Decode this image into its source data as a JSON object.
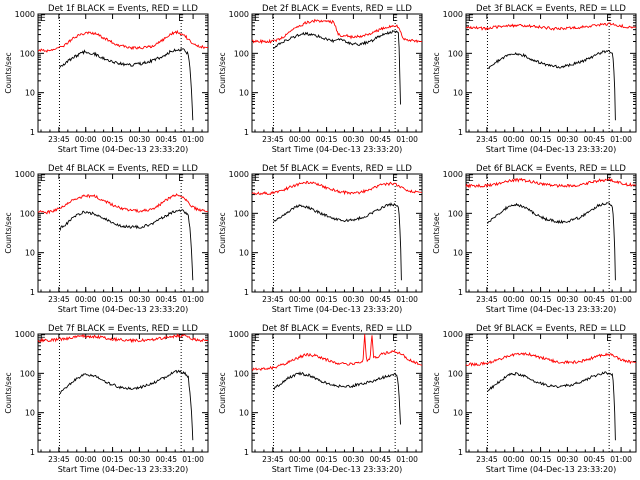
{
  "figure": {
    "xlabel": "Start Time (04-Dec-13 23:33:20)",
    "ylabel": "Counts/sec",
    "x_ticks": [
      "23:45",
      "00:00",
      "00:15",
      "00:30",
      "00:45",
      "01:00"
    ],
    "y_ticks": [
      "1",
      "10",
      "100",
      "1000"
    ],
    "marker": "E",
    "colors": {
      "events": "#000000",
      "lld": "#ff0000",
      "marker_lines": "#000000"
    }
  },
  "chart_data": [
    {
      "type": "line",
      "title": "Det 1f BLACK = Events, RED = LLD",
      "x_unit": "minutes after 23:33:20",
      "xlim": [
        0,
        95
      ],
      "ylim": [
        1,
        1000
      ],
      "y_scale": "log",
      "markers_x": [
        12,
        80
      ],
      "series": [
        {
          "name": "Events",
          "color": "#000000",
          "x": [
            12,
            16,
            20,
            26,
            32,
            38,
            45,
            52,
            58,
            64,
            70,
            74,
            77,
            80,
            82,
            84,
            85,
            86,
            86.5
          ],
          "values": [
            45,
            60,
            80,
            110,
            95,
            70,
            55,
            50,
            55,
            65,
            85,
            110,
            120,
            125,
            120,
            95,
            40,
            8,
            2
          ]
        },
        {
          "name": "LLD",
          "color": "#ff0000",
          "x": [
            0,
            5,
            10,
            15,
            20,
            26,
            32,
            38,
            45,
            52,
            58,
            64,
            70,
            74,
            78,
            82,
            86,
            90,
            95
          ],
          "values": [
            120,
            115,
            125,
            160,
            250,
            330,
            320,
            230,
            160,
            140,
            135,
            150,
            220,
            310,
            350,
            280,
            180,
            150,
            140
          ]
        }
      ]
    },
    {
      "type": "line",
      "title": "Det 2f BLACK = Events, RED = LLD",
      "x_unit": "minutes after 23:33:20",
      "xlim": [
        0,
        95
      ],
      "ylim": [
        1,
        1000
      ],
      "y_scale": "log",
      "markers_x": [
        12,
        80
      ],
      "series": [
        {
          "name": "Events",
          "color": "#000000",
          "x": [
            12,
            18,
            24,
            30,
            36,
            42,
            46,
            48,
            52,
            56,
            60,
            66,
            72,
            76,
            80,
            82,
            83
          ],
          "values": [
            140,
            200,
            270,
            320,
            280,
            230,
            200,
            230,
            200,
            170,
            170,
            200,
            280,
            330,
            380,
            330,
            5
          ]
        },
        {
          "name": "LLD",
          "color": "#ff0000",
          "x": [
            0,
            6,
            12,
            18,
            24,
            30,
            36,
            42,
            46,
            48,
            52,
            56,
            60,
            66,
            72,
            76,
            80,
            82,
            84,
            88,
            95
          ],
          "values": [
            200,
            200,
            200,
            270,
            420,
            600,
            680,
            640,
            620,
            300,
            280,
            260,
            270,
            300,
            420,
            480,
            500,
            480,
            250,
            210,
            200
          ]
        }
      ]
    },
    {
      "type": "line",
      "title": "Det 3f BLACK = Events, RED = LLD",
      "x_unit": "minutes after 23:33:20",
      "xlim": [
        0,
        95
      ],
      "ylim": [
        1,
        1000
      ],
      "y_scale": "log",
      "markers_x": [
        12,
        80
      ],
      "series": [
        {
          "name": "Events",
          "color": "#000000",
          "x": [
            12,
            16,
            20,
            26,
            32,
            38,
            45,
            52,
            58,
            64,
            70,
            74,
            78,
            80,
            82,
            83,
            83.5
          ],
          "values": [
            40,
            55,
            75,
            100,
            90,
            65,
            50,
            45,
            50,
            60,
            80,
            100,
            110,
            110,
            100,
            20,
            2
          ]
        },
        {
          "name": "LLD",
          "color": "#ff0000",
          "x": [
            0,
            10,
            20,
            30,
            40,
            50,
            60,
            70,
            80,
            90,
            95
          ],
          "values": [
            450,
            430,
            480,
            520,
            470,
            420,
            440,
            500,
            560,
            470,
            460
          ]
        }
      ]
    },
    {
      "type": "line",
      "title": "Det 4f BLACK = Events, RED = LLD",
      "x_unit": "minutes after 23:33:20",
      "xlim": [
        0,
        95
      ],
      "ylim": [
        1,
        1000
      ],
      "y_scale": "log",
      "markers_x": [
        12,
        80
      ],
      "series": [
        {
          "name": "Events",
          "color": "#000000",
          "x": [
            12,
            16,
            20,
            26,
            32,
            38,
            45,
            52,
            58,
            64,
            70,
            74,
            77,
            80,
            82,
            84,
            85,
            86,
            86.5
          ],
          "values": [
            40,
            55,
            80,
            110,
            95,
            70,
            50,
            45,
            45,
            55,
            80,
            100,
            115,
            120,
            110,
            90,
            40,
            8,
            2
          ]
        },
        {
          "name": "LLD",
          "color": "#ff0000",
          "x": [
            0,
            5,
            10,
            15,
            20,
            26,
            32,
            38,
            45,
            52,
            58,
            64,
            70,
            74,
            78,
            82,
            86,
            90,
            95
          ],
          "values": [
            110,
            105,
            120,
            160,
            220,
            280,
            270,
            200,
            140,
            120,
            115,
            125,
            190,
            260,
            300,
            230,
            150,
            120,
            110
          ]
        }
      ]
    },
    {
      "type": "line",
      "title": "Det 5f BLACK = Events, RED = LLD",
      "x_unit": "minutes after 23:33:20",
      "xlim": [
        0,
        95
      ],
      "ylim": [
        1,
        1000
      ],
      "y_scale": "log",
      "markers_x": [
        12,
        80
      ],
      "series": [
        {
          "name": "Events",
          "color": "#000000",
          "x": [
            12,
            16,
            20,
            26,
            32,
            38,
            45,
            52,
            58,
            64,
            70,
            74,
            78,
            80,
            82,
            83,
            83.5
          ],
          "values": [
            60,
            80,
            110,
            160,
            140,
            100,
            75,
            65,
            70,
            85,
            120,
            150,
            170,
            160,
            140,
            20,
            2
          ]
        },
        {
          "name": "LLD",
          "color": "#ff0000",
          "x": [
            0,
            6,
            12,
            18,
            24,
            30,
            36,
            42,
            48,
            54,
            60,
            66,
            72,
            78,
            82,
            86,
            90,
            95
          ],
          "values": [
            320,
            320,
            330,
            400,
            520,
            620,
            560,
            440,
            360,
            330,
            340,
            400,
            520,
            580,
            500,
            400,
            360,
            340
          ]
        }
      ]
    },
    {
      "type": "line",
      "title": "Det 6f BLACK = Events, RED = LLD",
      "x_unit": "minutes after 23:33:20",
      "xlim": [
        0,
        95
      ],
      "ylim": [
        1,
        1000
      ],
      "y_scale": "log",
      "markers_x": [
        12,
        80
      ],
      "series": [
        {
          "name": "Events",
          "color": "#000000",
          "x": [
            12,
            16,
            20,
            26,
            32,
            38,
            45,
            52,
            58,
            64,
            70,
            74,
            78,
            80,
            82,
            83,
            83.5
          ],
          "values": [
            55,
            80,
            115,
            170,
            150,
            100,
            70,
            60,
            65,
            80,
            120,
            160,
            180,
            170,
            140,
            20,
            2
          ]
        },
        {
          "name": "LLD",
          "color": "#ff0000",
          "x": [
            0,
            8,
            14,
            20,
            26,
            32,
            38,
            44,
            50,
            56,
            62,
            68,
            74,
            80,
            86,
            90,
            95
          ],
          "values": [
            500,
            500,
            520,
            600,
            700,
            700,
            620,
            540,
            500,
            500,
            520,
            580,
            680,
            720,
            600,
            540,
            520
          ]
        }
      ]
    },
    {
      "type": "line",
      "title": "Det 7f BLACK = Events, RED = LLD",
      "x_unit": "minutes after 23:33:20",
      "xlim": [
        0,
        95
      ],
      "ylim": [
        1,
        1000
      ],
      "y_scale": "log",
      "markers_x": [
        12,
        80
      ],
      "series": [
        {
          "name": "Events",
          "color": "#000000",
          "x": [
            12,
            16,
            20,
            26,
            32,
            38,
            45,
            52,
            58,
            64,
            70,
            74,
            77,
            80,
            82,
            84,
            85,
            86,
            86.5
          ],
          "values": [
            30,
            45,
            65,
            95,
            85,
            60,
            45,
            40,
            45,
            55,
            75,
            95,
            110,
            110,
            100,
            80,
            30,
            8,
            2
          ]
        },
        {
          "name": "LLD",
          "color": "#ff0000",
          "x": [
            0,
            8,
            16,
            24,
            32,
            40,
            48,
            56,
            64,
            72,
            78,
            82,
            86,
            90,
            95
          ],
          "values": [
            680,
            700,
            760,
            880,
            860,
            760,
            700,
            680,
            720,
            820,
            900,
            880,
            760,
            700,
            680
          ]
        }
      ]
    },
    {
      "type": "line",
      "title": "Det 8f BLACK = Events, RED = LLD",
      "x_unit": "minutes after 23:33:20",
      "xlim": [
        0,
        95
      ],
      "ylim": [
        1,
        1000
      ],
      "y_scale": "log",
      "markers_x": [
        12,
        80
      ],
      "series": [
        {
          "name": "Events",
          "color": "#000000",
          "x": [
            12,
            16,
            20,
            26,
            32,
            38,
            45,
            52,
            56,
            60,
            64,
            67,
            70,
            74,
            78,
            80,
            81,
            82,
            83
          ],
          "values": [
            40,
            55,
            75,
            100,
            90,
            65,
            50,
            45,
            48,
            52,
            58,
            62,
            70,
            80,
            90,
            95,
            95,
            40,
            5
          ]
        },
        {
          "name": "LLD",
          "color": "#ff0000",
          "x": [
            0,
            6,
            12,
            18,
            24,
            30,
            36,
            42,
            48,
            54,
            60,
            62,
            63,
            64,
            66,
            67,
            68,
            70,
            72,
            76,
            80,
            84,
            88,
            92,
            95
          ],
          "values": [
            130,
            130,
            140,
            170,
            230,
            300,
            280,
            220,
            180,
            170,
            190,
            200,
            1000,
            210,
            230,
            1000,
            240,
            260,
            300,
            340,
            360,
            300,
            220,
            180,
            160
          ]
        }
      ]
    },
    {
      "type": "line",
      "title": "Det 9f BLACK = Events, RED = LLD",
      "x_unit": "minutes after 23:33:20",
      "xlim": [
        0,
        95
      ],
      "ylim": [
        1,
        1000
      ],
      "y_scale": "log",
      "markers_x": [
        12,
        80
      ],
      "series": [
        {
          "name": "Events",
          "color": "#000000",
          "x": [
            12,
            16,
            20,
            26,
            32,
            38,
            45,
            52,
            58,
            64,
            70,
            74,
            78,
            80,
            82,
            83,
            83.5
          ],
          "values": [
            35,
            50,
            70,
            100,
            90,
            65,
            50,
            45,
            50,
            60,
            80,
            95,
            105,
            100,
            95,
            15,
            2
          ]
        },
        {
          "name": "LLD",
          "color": "#ff0000",
          "x": [
            0,
            6,
            12,
            18,
            24,
            30,
            36,
            42,
            48,
            54,
            60,
            66,
            72,
            78,
            82,
            86,
            90,
            95
          ],
          "values": [
            170,
            170,
            180,
            220,
            280,
            320,
            300,
            250,
            210,
            190,
            190,
            210,
            260,
            310,
            290,
            230,
            200,
            190
          ]
        }
      ]
    }
  ]
}
